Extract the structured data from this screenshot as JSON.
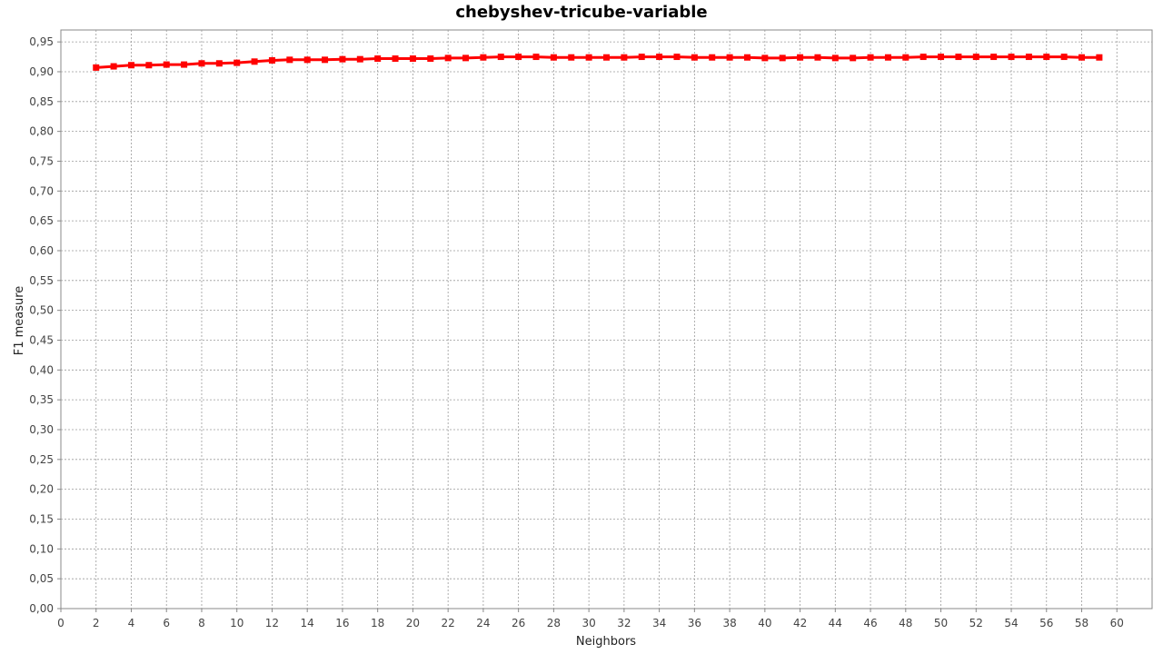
{
  "chart_data": {
    "type": "line",
    "title": "chebyshev-tricube-variable",
    "xlabel": "Neighbors",
    "ylabel": "F1 measure",
    "xlim": [
      0,
      62
    ],
    "ylim": [
      0,
      0.97
    ],
    "x_ticks": [
      0,
      2,
      4,
      6,
      8,
      10,
      12,
      14,
      16,
      18,
      20,
      22,
      24,
      26,
      28,
      30,
      32,
      34,
      36,
      38,
      40,
      42,
      44,
      46,
      48,
      50,
      52,
      54,
      56,
      58,
      60
    ],
    "y_ticks": [
      "0,00",
      "0,05",
      "0,10",
      "0,15",
      "0,20",
      "0,25",
      "0,30",
      "0,35",
      "0,40",
      "0,45",
      "0,50",
      "0,55",
      "0,60",
      "0,65",
      "0,70",
      "0,75",
      "0,80",
      "0,85",
      "0,90",
      "0,95"
    ],
    "grid": true,
    "legend": "none",
    "series_color": "#ff0000",
    "series": [
      {
        "x": [
          2,
          3,
          4,
          5,
          6,
          7,
          8,
          9,
          10,
          11,
          12,
          13,
          14,
          15,
          16,
          17,
          18,
          19,
          20,
          21,
          22,
          23,
          24,
          25,
          26,
          27,
          28,
          29,
          30,
          31,
          32,
          33,
          34,
          35,
          36,
          37,
          38,
          39,
          40,
          41,
          42,
          43,
          44,
          45,
          46,
          47,
          48,
          49,
          50,
          51,
          52,
          53,
          54,
          55,
          56,
          57,
          58,
          59
        ],
        "values": [
          0.907,
          0.909,
          0.911,
          0.911,
          0.912,
          0.912,
          0.914,
          0.914,
          0.915,
          0.917,
          0.919,
          0.92,
          0.92,
          0.92,
          0.921,
          0.921,
          0.922,
          0.922,
          0.922,
          0.922,
          0.923,
          0.923,
          0.924,
          0.925,
          0.925,
          0.925,
          0.924,
          0.924,
          0.924,
          0.924,
          0.924,
          0.925,
          0.925,
          0.925,
          0.924,
          0.924,
          0.924,
          0.924,
          0.923,
          0.923,
          0.924,
          0.924,
          0.923,
          0.923,
          0.924,
          0.924,
          0.924,
          0.925,
          0.925,
          0.925,
          0.925,
          0.925,
          0.925,
          0.925,
          0.925,
          0.925,
          0.924,
          0.924
        ]
      }
    ]
  }
}
